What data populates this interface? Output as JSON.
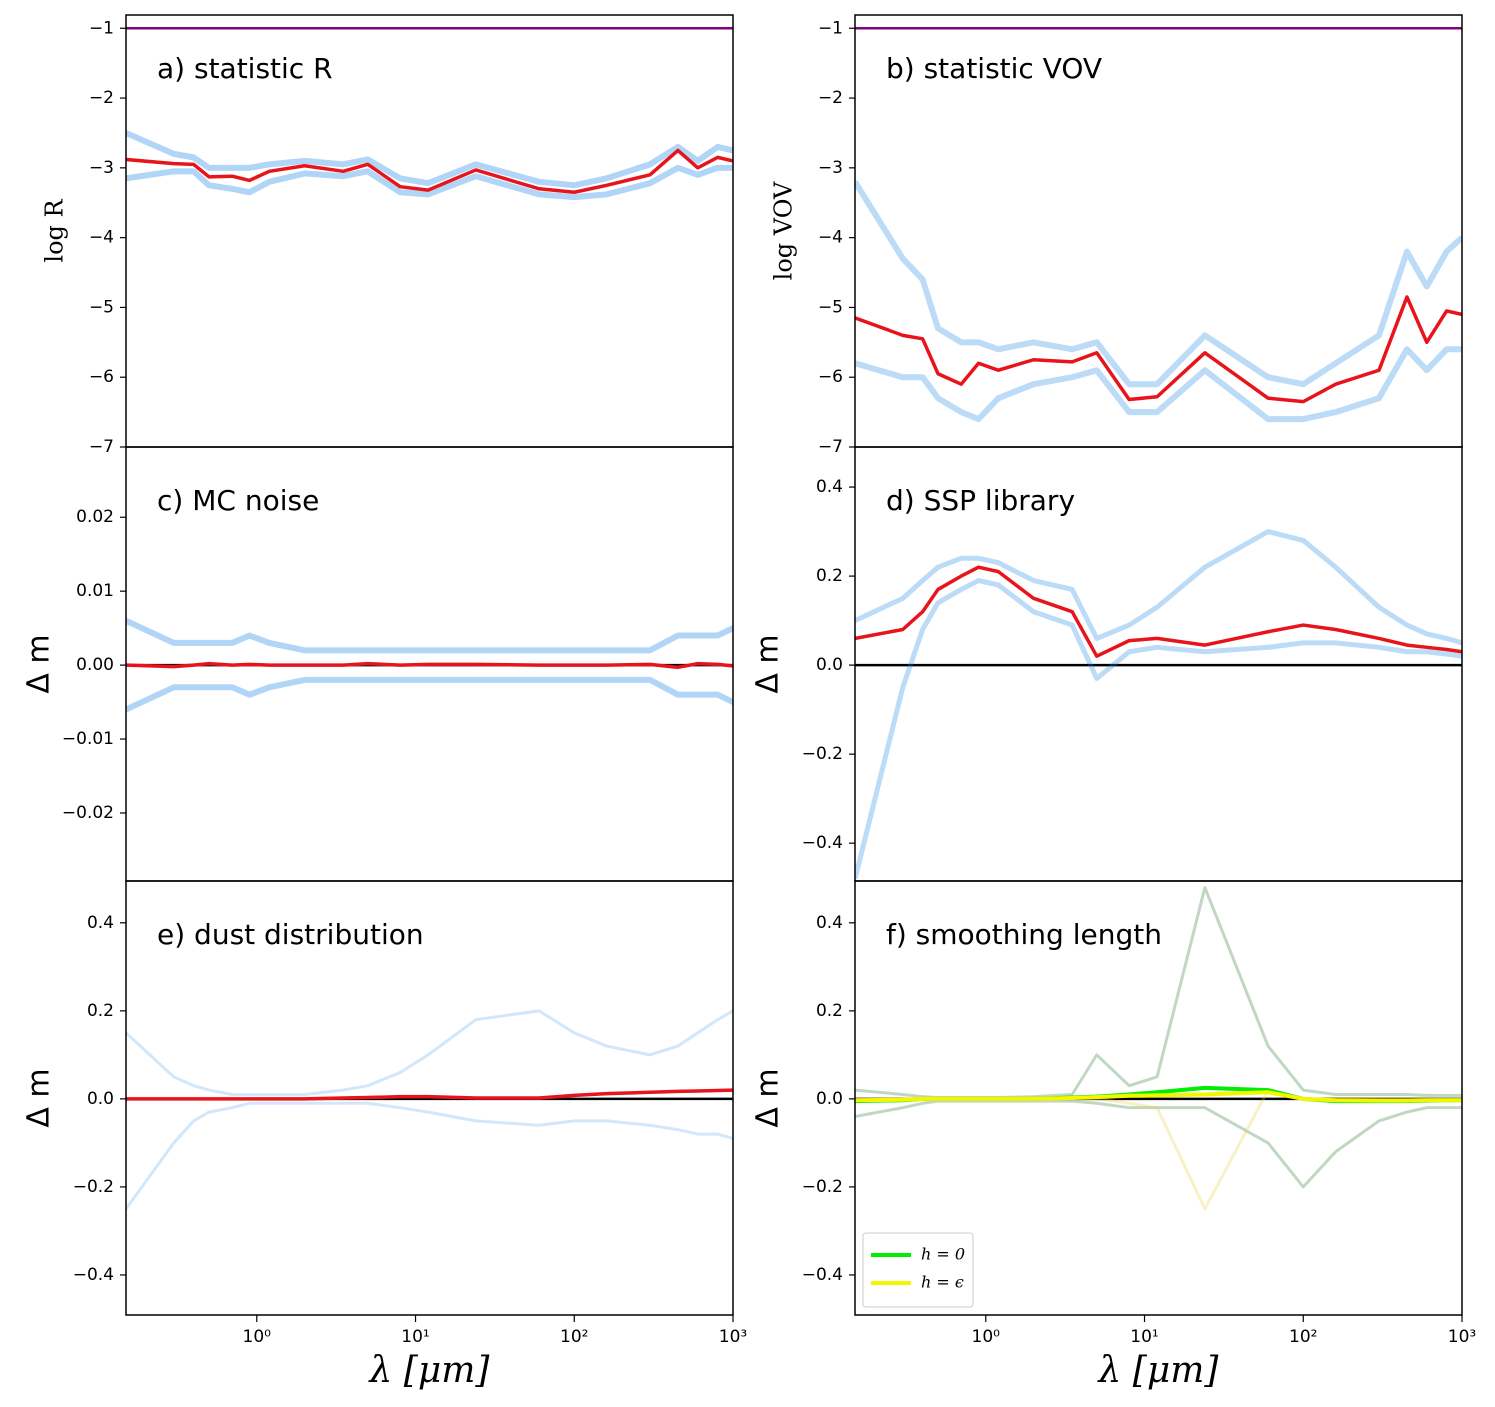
{
  "chart_data": [
    {
      "type": "line",
      "title": "a) statistic R",
      "ylabel": "log R",
      "xlog": true,
      "x": [
        0.15,
        0.3,
        0.4,
        0.5,
        0.7,
        0.9,
        1.2,
        2,
        3.5,
        5,
        8,
        12,
        24,
        60,
        100,
        160,
        300,
        450,
        600,
        800,
        1000
      ],
      "xlim": [
        0.15,
        1000
      ],
      "ylim": [
        -7,
        -0.81
      ],
      "yticks": [
        {
          "value": -7,
          "label": "−7"
        },
        {
          "value": -6,
          "label": "−6"
        },
        {
          "value": -5,
          "label": "−5"
        },
        {
          "value": -4,
          "label": "−4"
        },
        {
          "value": -3,
          "label": "−3"
        },
        {
          "value": -2,
          "label": "−2"
        },
        {
          "value": -1,
          "label": "−1"
        }
      ],
      "hlines": [
        {
          "value": -1,
          "color": "#800080"
        }
      ],
      "series": [
        {
          "color": "#1e88e5",
          "alpha": 0.35,
          "linewidth": 6,
          "values": [
            -2.5,
            -2.8,
            -2.85,
            -3.0,
            -3.0,
            -3.0,
            -2.95,
            -2.9,
            -2.95,
            -2.88,
            -3.15,
            -3.22,
            -2.95,
            -3.2,
            -3.25,
            -3.15,
            -2.95,
            -2.7,
            -2.9,
            -2.7,
            -2.75
          ]
        },
        {
          "color": "#1e88e5",
          "alpha": 0.35,
          "linewidth": 6,
          "values": [
            -3.15,
            -3.05,
            -3.05,
            -3.25,
            -3.3,
            -3.35,
            -3.2,
            -3.08,
            -3.12,
            -3.05,
            -3.35,
            -3.38,
            -3.12,
            -3.38,
            -3.42,
            -3.38,
            -3.22,
            -3.0,
            -3.1,
            -3.0,
            -3.0
          ]
        },
        {
          "color": "#e8141b",
          "alpha": 1,
          "linewidth": 3.5,
          "values": [
            -2.88,
            -2.94,
            -2.95,
            -3.13,
            -3.12,
            -3.18,
            -3.05,
            -2.97,
            -3.05,
            -2.95,
            -3.27,
            -3.32,
            -3.03,
            -3.3,
            -3.35,
            -3.25,
            -3.1,
            -2.75,
            -3.0,
            -2.85,
            -2.9
          ]
        }
      ]
    },
    {
      "type": "line",
      "title": "b) statistic VOV",
      "ylabel": "log VOV",
      "xlog": true,
      "x": [
        0.15,
        0.3,
        0.4,
        0.5,
        0.7,
        0.9,
        1.2,
        2,
        3.5,
        5,
        8,
        12,
        24,
        60,
        100,
        160,
        300,
        450,
        600,
        800,
        1000
      ],
      "xlim": [
        0.15,
        1000
      ],
      "ylim": [
        -7,
        -0.81
      ],
      "yticks": [
        {
          "value": -7,
          "label": "−7"
        },
        {
          "value": -6,
          "label": "−6"
        },
        {
          "value": -5,
          "label": "−5"
        },
        {
          "value": -4,
          "label": "−4"
        },
        {
          "value": -3,
          "label": "−3"
        },
        {
          "value": -2,
          "label": "−2"
        },
        {
          "value": -1,
          "label": "−1"
        }
      ],
      "hlines": [
        {
          "value": -1,
          "color": "#800080"
        }
      ],
      "series": [
        {
          "color": "#1e88e5",
          "alpha": 0.3,
          "linewidth": 6,
          "values": [
            -3.2,
            -4.3,
            -4.6,
            -5.3,
            -5.5,
            -5.5,
            -5.6,
            -5.5,
            -5.6,
            -5.5,
            -6.1,
            -6.1,
            -5.4,
            -6.0,
            -6.1,
            -5.8,
            -5.4,
            -4.2,
            -4.7,
            -4.2,
            -4.0
          ]
        },
        {
          "color": "#1e88e5",
          "alpha": 0.3,
          "linewidth": 6,
          "values": [
            -5.8,
            -6.0,
            -6.0,
            -6.3,
            -6.5,
            -6.6,
            -6.3,
            -6.1,
            -6.0,
            -5.9,
            -6.5,
            -6.5,
            -5.9,
            -6.6,
            -6.6,
            -6.5,
            -6.3,
            -5.6,
            -5.9,
            -5.6,
            -5.6
          ]
        },
        {
          "color": "#e8141b",
          "alpha": 1,
          "linewidth": 3.5,
          "values": [
            -5.15,
            -5.4,
            -5.45,
            -5.95,
            -6.1,
            -5.8,
            -5.9,
            -5.75,
            -5.78,
            -5.65,
            -6.32,
            -6.28,
            -5.65,
            -6.3,
            -6.35,
            -6.1,
            -5.9,
            -4.85,
            -5.5,
            -5.05,
            -5.1
          ]
        }
      ]
    },
    {
      "type": "line",
      "title": "c) MC noise",
      "ylabel": "Δ m",
      "xlog": true,
      "x": [
        0.15,
        0.3,
        0.4,
        0.5,
        0.7,
        0.9,
        1.2,
        2,
        3.5,
        5,
        8,
        12,
        24,
        60,
        100,
        160,
        300,
        450,
        600,
        800,
        1000
      ],
      "xlim": [
        0.15,
        1000
      ],
      "ylim": [
        -0.0292,
        0.0295
      ],
      "yticks": [
        {
          "value": -0.02,
          "label": "−0.02"
        },
        {
          "value": -0.01,
          "label": "−0.01"
        },
        {
          "value": 0,
          "label": "0.00"
        },
        0.01,
        0.02
      ],
      "hlines": [
        {
          "value": 0,
          "color": "#000000"
        }
      ],
      "series": [
        {
          "color": "#1e88e5",
          "alpha": 0.35,
          "linewidth": 6,
          "values": [
            0.006,
            0.003,
            0.003,
            0.003,
            0.003,
            0.004,
            0.003,
            0.002,
            0.002,
            0.002,
            0.002,
            0.002,
            0.002,
            0.002,
            0.002,
            0.002,
            0.002,
            0.004,
            0.004,
            0.004,
            0.005
          ]
        },
        {
          "color": "#1e88e5",
          "alpha": 0.35,
          "linewidth": 6,
          "values": [
            -0.006,
            -0.003,
            -0.003,
            -0.003,
            -0.003,
            -0.004,
            -0.003,
            -0.002,
            -0.002,
            -0.002,
            -0.002,
            -0.002,
            -0.002,
            -0.002,
            -0.002,
            -0.002,
            -0.002,
            -0.004,
            -0.004,
            -0.004,
            -0.005
          ]
        },
        {
          "color": "#e8141b",
          "alpha": 1,
          "linewidth": 3.5,
          "values": [
            0,
            -0.0002,
            0,
            0.0002,
            0,
            0.0001,
            0,
            0,
            0,
            0.0002,
            0,
            0.0001,
            0.0001,
            0,
            0,
            0,
            0.0001,
            -0.0003,
            0.0002,
            0.0001,
            -0.0001
          ]
        }
      ]
    },
    {
      "type": "line",
      "title": "d) SSP library",
      "ylabel": "Δ m",
      "xlog": true,
      "x": [
        0.15,
        0.3,
        0.4,
        0.5,
        0.7,
        0.9,
        1.2,
        2,
        3.5,
        5,
        8,
        12,
        24,
        60,
        100,
        160,
        300,
        450,
        600,
        800,
        1000
      ],
      "xlim": [
        0.15,
        1000
      ],
      "ylim": [
        -0.485,
        0.49
      ],
      "yticks": [
        {
          "value": -0.4,
          "label": "−0.4"
        },
        {
          "value": -0.2,
          "label": "−0.2"
        },
        {
          "value": 0,
          "label": "0.0"
        },
        0.2,
        0.4
      ],
      "hlines": [
        {
          "value": 0,
          "color": "#000000"
        }
      ],
      "series": [
        {
          "color": "#1e88e5",
          "alpha": 0.3,
          "linewidth": 5,
          "values": [
            0.1,
            0.15,
            0.19,
            0.22,
            0.24,
            0.24,
            0.23,
            0.19,
            0.17,
            0.06,
            0.09,
            0.13,
            0.22,
            0.3,
            0.28,
            0.22,
            0.13,
            0.09,
            0.07,
            0.06,
            0.05
          ]
        },
        {
          "color": "#1e88e5",
          "alpha": 0.3,
          "linewidth": 5,
          "values": [
            -0.48,
            -0.05,
            0.08,
            0.14,
            0.17,
            0.19,
            0.18,
            0.12,
            0.09,
            -0.03,
            0.03,
            0.04,
            0.03,
            0.04,
            0.05,
            0.05,
            0.04,
            0.03,
            0.03,
            0.025,
            0.02
          ]
        },
        {
          "color": "#e8141b",
          "alpha": 1,
          "linewidth": 3.5,
          "values": [
            0.06,
            0.08,
            0.12,
            0.17,
            0.2,
            0.22,
            0.21,
            0.15,
            0.12,
            0.02,
            0.055,
            0.06,
            0.045,
            0.075,
            0.09,
            0.08,
            0.06,
            0.045,
            0.04,
            0.035,
            0.03
          ]
        }
      ]
    },
    {
      "type": "line",
      "title": "e) dust distribution",
      "ylabel": "Δ m",
      "xlabel": "λ [μm]",
      "xlog": true,
      "x": [
        0.15,
        0.3,
        0.4,
        0.5,
        0.7,
        0.9,
        1.2,
        2,
        3.5,
        5,
        8,
        12,
        24,
        60,
        100,
        160,
        300,
        450,
        600,
        800,
        1000
      ],
      "xlim": [
        0.15,
        1000
      ],
      "ylim": [
        -0.491,
        0.495
      ],
      "xticks": [
        {
          "value": 1,
          "label": "10⁰"
        },
        {
          "value": 10,
          "label": "10¹"
        },
        {
          "value": 100,
          "label": "10²"
        },
        {
          "value": 1000,
          "label": "10³"
        }
      ],
      "yticks": [
        {
          "value": -0.4,
          "label": "−0.4"
        },
        {
          "value": -0.2,
          "label": "−0.2"
        },
        {
          "value": 0,
          "label": "0.0"
        },
        0.2,
        0.4
      ],
      "hlines": [
        {
          "value": 0,
          "color": "#000000"
        }
      ],
      "series": [
        {
          "color": "#1e88e5",
          "alpha": 0.2,
          "linewidth": 3,
          "values": [
            0.15,
            0.05,
            0.03,
            0.02,
            0.01,
            0.01,
            0.01,
            0.01,
            0.02,
            0.03,
            0.06,
            0.1,
            0.18,
            0.2,
            0.15,
            0.12,
            0.1,
            0.12,
            0.15,
            0.18,
            0.2
          ]
        },
        {
          "color": "#1e88e5",
          "alpha": 0.2,
          "linewidth": 3,
          "values": [
            -0.25,
            -0.1,
            -0.05,
            -0.03,
            -0.02,
            -0.01,
            -0.01,
            -0.01,
            -0.01,
            -0.01,
            -0.02,
            -0.03,
            -0.05,
            -0.06,
            -0.05,
            -0.05,
            -0.06,
            -0.07,
            -0.08,
            -0.08,
            -0.09
          ]
        },
        {
          "color": "#e8141b",
          "alpha": 1,
          "linewidth": 3.5,
          "values": [
            0,
            0,
            0,
            0,
            0,
            0,
            0,
            0,
            0.002,
            0.003,
            0.005,
            0.005,
            0.002,
            0.002,
            0.008,
            0.012,
            0.015,
            0.017,
            0.018,
            0.019,
            0.02
          ]
        }
      ]
    },
    {
      "type": "line",
      "title": "f) smoothing length",
      "ylabel": "Δ m",
      "xlabel": "λ [μm]",
      "xlog": true,
      "legend": "lower left",
      "x": [
        0.15,
        0.3,
        0.4,
        0.5,
        0.7,
        0.9,
        1.2,
        2,
        3.5,
        5,
        8,
        12,
        24,
        60,
        100,
        160,
        300,
        450,
        600,
        800,
        1000
      ],
      "xlim": [
        0.15,
        1000
      ],
      "ylim": [
        -0.491,
        0.495
      ],
      "xticks": [
        {
          "value": 1,
          "label": "10⁰"
        },
        {
          "value": 10,
          "label": "10¹"
        },
        {
          "value": 100,
          "label": "10²"
        },
        {
          "value": 1000,
          "label": "10³"
        }
      ],
      "yticks": [
        {
          "value": -0.4,
          "label": "−0.4"
        },
        {
          "value": -0.2,
          "label": "−0.2"
        },
        {
          "value": 0,
          "label": "0.0"
        },
        0.2,
        0.4
      ],
      "hlines": [
        {
          "value": 0,
          "color": "#000000"
        }
      ],
      "series": [
        {
          "color": "#2e7d32",
          "alpha": 0.3,
          "linewidth": 3,
          "values": [
            0.02,
            0.01,
            0.005,
            0.003,
            0.003,
            0.003,
            0.003,
            0.005,
            0.01,
            0.1,
            0.03,
            0.05,
            0.48,
            0.12,
            0.02,
            0.01,
            0.01,
            0.01,
            0.008,
            0.008,
            0.008
          ]
        },
        {
          "color": "#2e7d32",
          "alpha": 0.3,
          "linewidth": 3,
          "values": [
            -0.04,
            -0.02,
            -0.01,
            -0.005,
            -0.005,
            -0.005,
            -0.005,
            -0.005,
            -0.005,
            -0.01,
            -0.02,
            -0.02,
            -0.02,
            -0.1,
            -0.2,
            -0.12,
            -0.05,
            -0.03,
            -0.02,
            -0.02,
            -0.02
          ]
        },
        {
          "color": "#e6d040",
          "alpha": 0.3,
          "linewidth": 3,
          "values": [
            0,
            0,
            0,
            0,
            0,
            0,
            0,
            0,
            0,
            0,
            -0.01,
            -0.02,
            -0.25,
            0.02,
            0,
            0,
            0,
            0,
            0,
            0,
            0
          ]
        },
        {
          "name": "h = 0",
          "color": "#00ee00",
          "alpha": 1,
          "linewidth": 4,
          "values": [
            -0.005,
            -0.003,
            0,
            0,
            0,
            0,
            0,
            0,
            0.003,
            0.005,
            0.01,
            0.015,
            0.025,
            0.02,
            0,
            -0.005,
            -0.005,
            -0.005,
            -0.004,
            -0.003,
            -0.003
          ]
        },
        {
          "name": "h = ϵ",
          "color": "#f5f500",
          "alpha": 1,
          "linewidth": 4,
          "values": [
            -0.003,
            -0.002,
            0,
            0,
            0,
            0,
            0,
            0,
            0.002,
            0.004,
            0.007,
            0.008,
            0.01,
            0.015,
            0,
            -0.003,
            -0.004,
            -0.004,
            -0.003,
            -0.003,
            -0.003
          ]
        }
      ]
    }
  ]
}
